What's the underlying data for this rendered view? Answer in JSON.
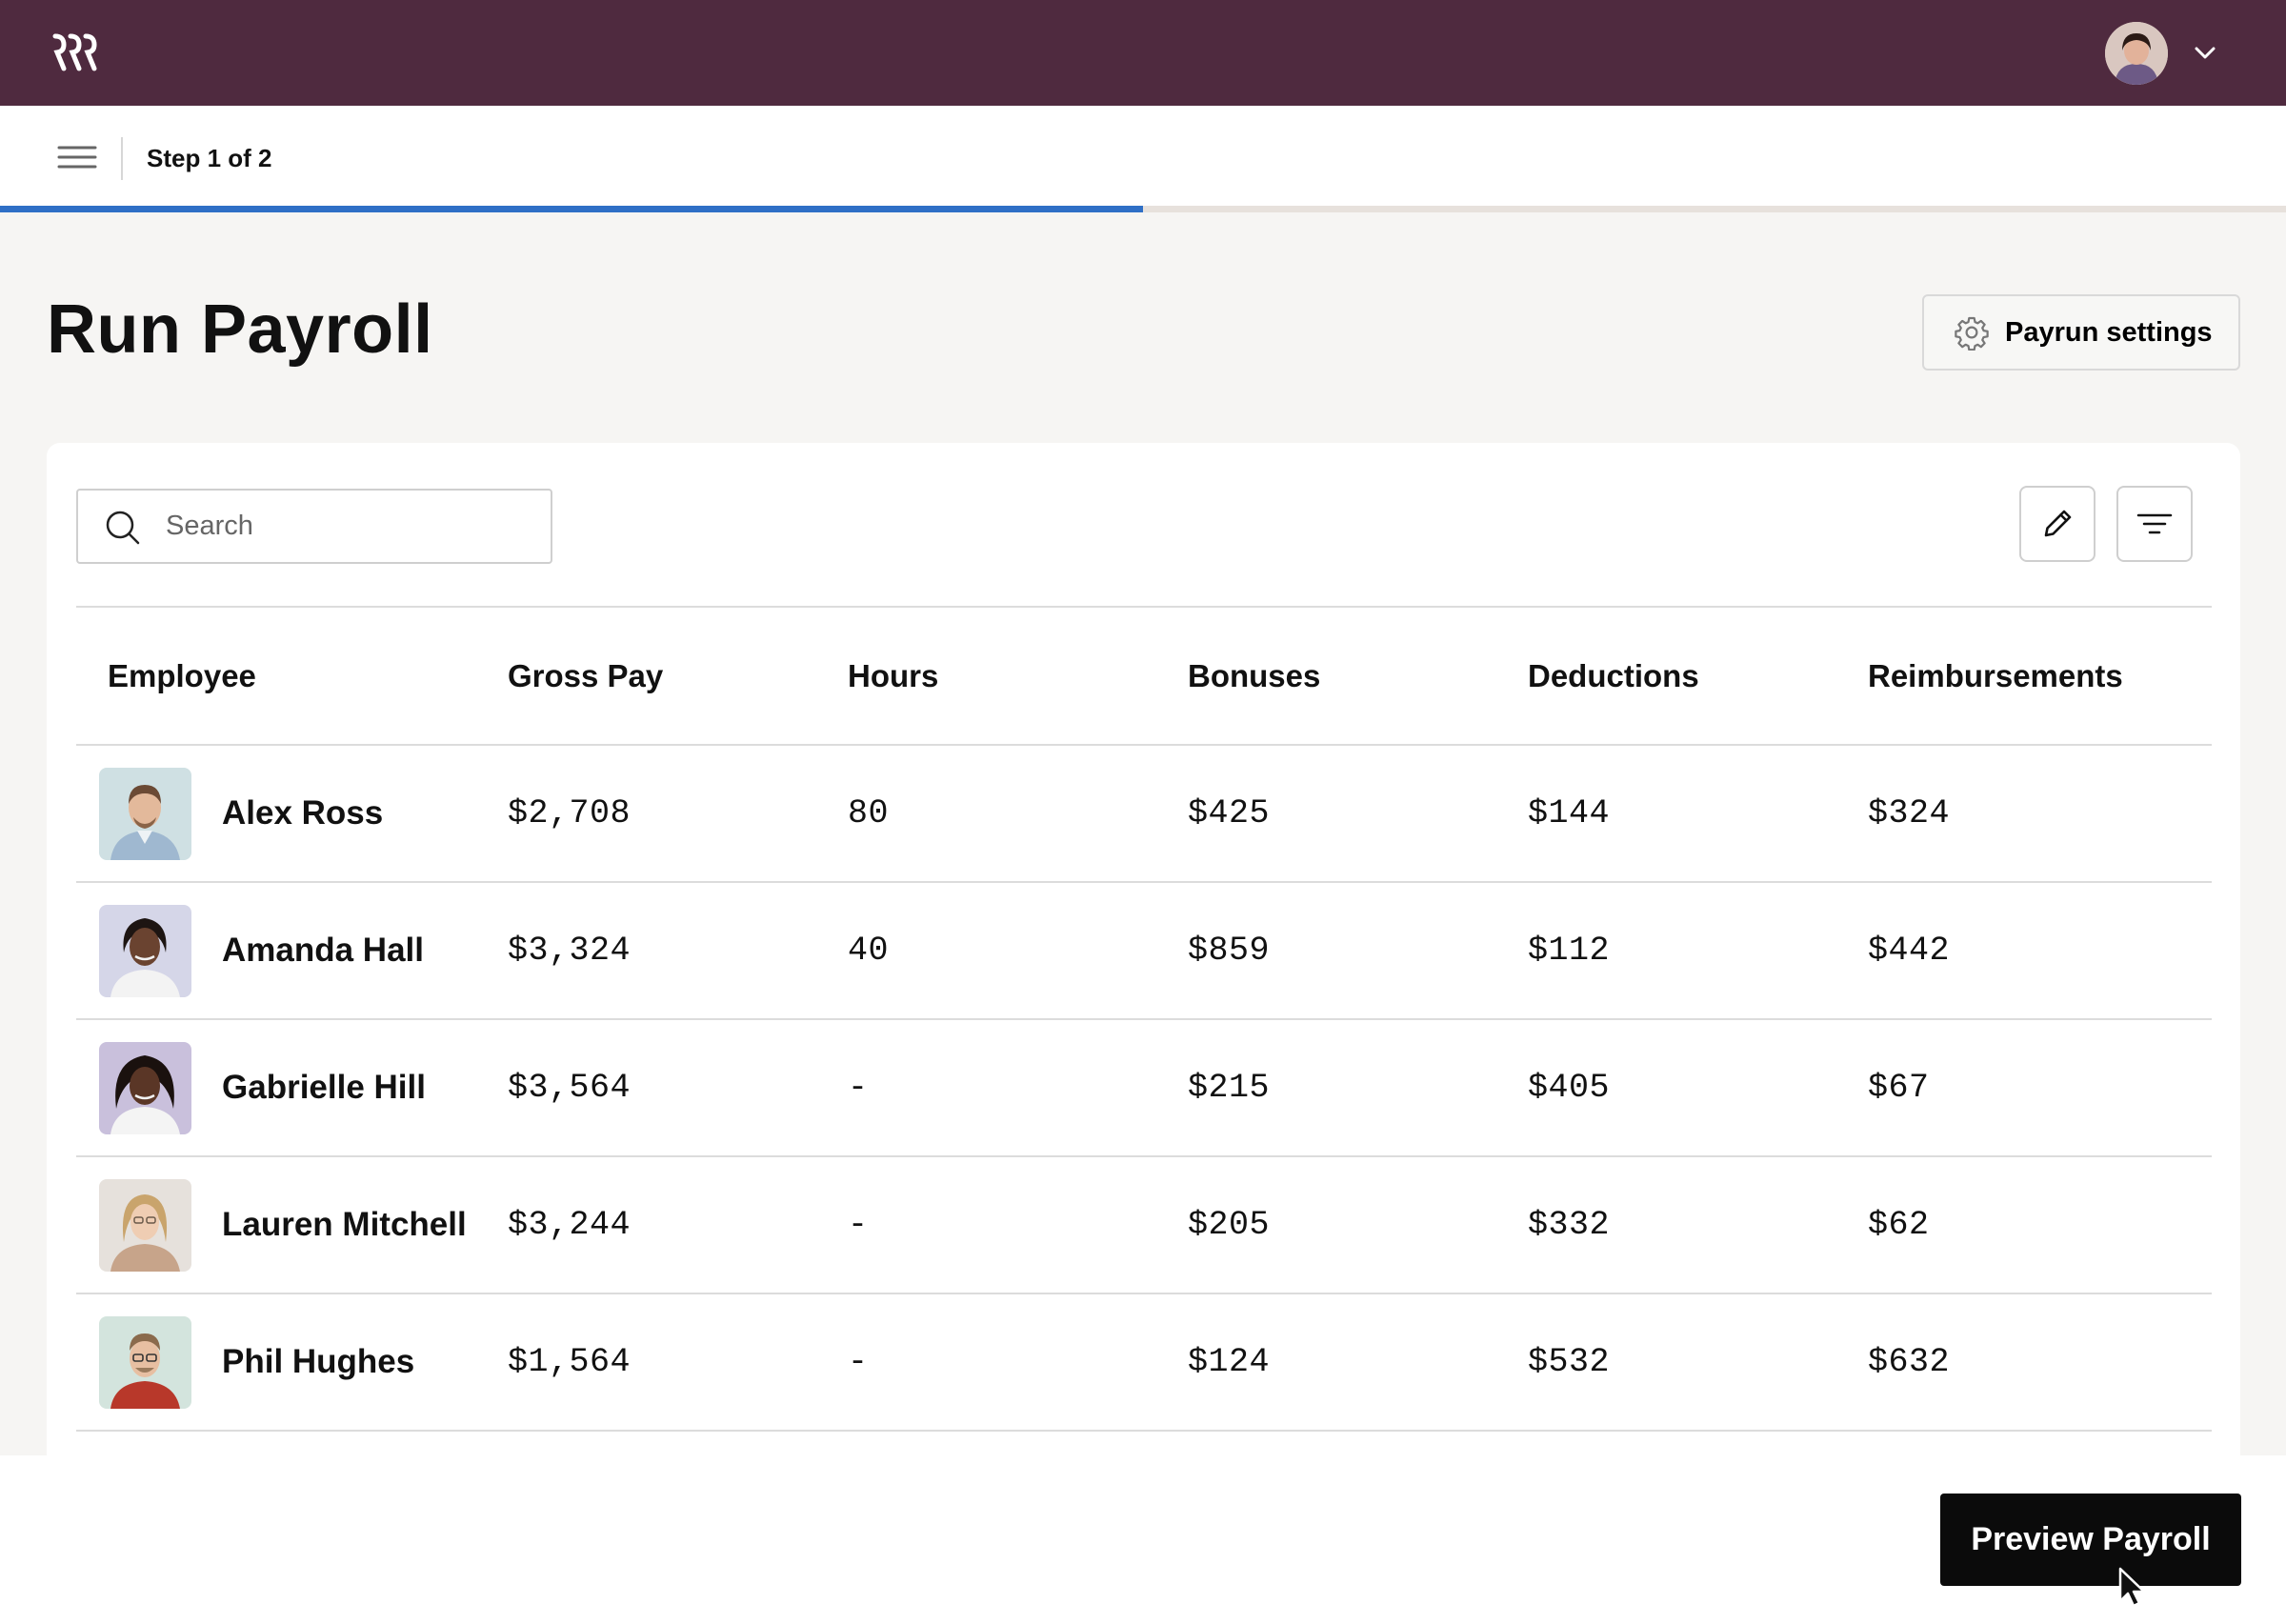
{
  "colors": {
    "topbar": "#4f2a3f",
    "progress": "#2f6fc6",
    "primary_button": "#0b0b0b"
  },
  "header": {
    "logo_icon": "brand-logo-icon",
    "profile_menu_icon": "chevron-down-icon"
  },
  "subheader": {
    "step_label": "Step 1 of 2",
    "progress_fraction": 0.5
  },
  "page": {
    "title": "Run Payroll",
    "settings_label": "Payrun settings"
  },
  "toolbar": {
    "search_placeholder": "Search",
    "search_value": ""
  },
  "table": {
    "columns": [
      "Employee",
      "Gross Pay",
      "Hours",
      "Bonuses",
      "Deductions",
      "Reimbursements"
    ],
    "rows": [
      {
        "name": "Alex Ross",
        "gross": "$2,708",
        "hours": "80",
        "bonuses": "$425",
        "deductions": "$144",
        "reimbursements": "$324"
      },
      {
        "name": "Amanda Hall",
        "gross": "$3,324",
        "hours": "40",
        "bonuses": "$859",
        "deductions": "$112",
        "reimbursements": "$442"
      },
      {
        "name": "Gabrielle Hill",
        "gross": "$3,564",
        "hours": "-",
        "bonuses": "$215",
        "deductions": "$405",
        "reimbursements": "$67"
      },
      {
        "name": "Lauren Mitchell",
        "gross": "$3,244",
        "hours": "-",
        "bonuses": "$205",
        "deductions": "$332",
        "reimbursements": "$62"
      },
      {
        "name": "Phil Hughes",
        "gross": "$1,564",
        "hours": "-",
        "bonuses": "$124",
        "deductions": "$532",
        "reimbursements": "$632"
      }
    ]
  },
  "footer": {
    "primary_label": "Preview Payroll"
  }
}
